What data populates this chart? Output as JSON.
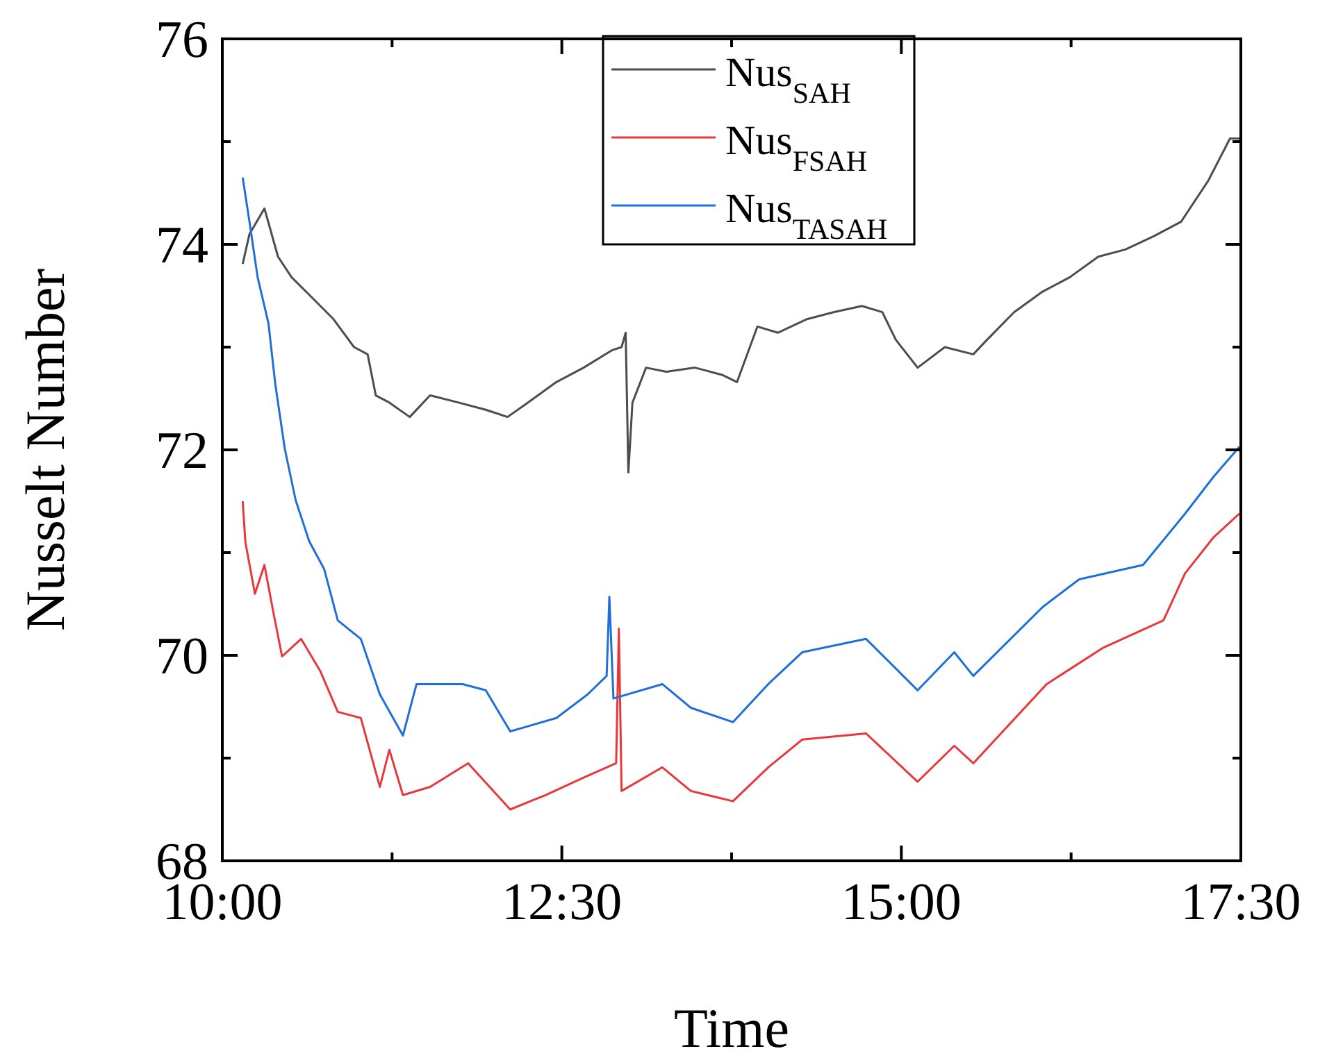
{
  "chart_data": {
    "type": "line",
    "xlabel": "Time",
    "ylabel": "Nusselt Number",
    "xlim": [
      10,
      17.5
    ],
    "ylim": [
      68,
      76
    ],
    "xticks": [
      {
        "value": 10,
        "label": "10:00"
      },
      {
        "value": 11.25,
        "label": null
      },
      {
        "value": 12.5,
        "label": "12:30"
      },
      {
        "value": 13.75,
        "label": null
      },
      {
        "value": 15,
        "label": "15:00"
      },
      {
        "value": 16.25,
        "label": null
      },
      {
        "value": 17.5,
        "label": "17:30"
      }
    ],
    "yticks": [
      68,
      {
        "value": 69,
        "label": null
      },
      70,
      {
        "value": 71,
        "label": null
      },
      72,
      {
        "value": 73,
        "label": null
      },
      74,
      {
        "value": 75,
        "label": null
      },
      76
    ],
    "legend": "top",
    "grid": false,
    "marker": "none",
    "line_style": "solid",
    "series": [
      {
        "name": "Nus$_{SAH}$",
        "color": "#4d4d4d",
        "x": [
          10.15,
          10.2,
          10.31,
          10.41,
          10.51,
          10.67,
          10.82,
          10.97,
          11.07,
          11.13,
          11.23,
          11.38,
          11.53,
          11.74,
          11.94,
          12.1,
          12.25,
          12.46,
          12.66,
          12.87,
          12.94,
          12.97,
          12.99,
          13.02,
          13.12,
          13.27,
          13.48,
          13.68,
          13.79,
          13.94,
          14.09,
          14.3,
          14.5,
          14.71,
          14.86,
          14.96,
          15.12,
          15.32,
          15.53,
          15.63,
          15.83,
          16.04,
          16.24,
          16.45,
          16.65,
          16.86,
          17.06,
          17.26,
          17.42,
          17.5
        ],
        "values": [
          73.81,
          74.1,
          74.35,
          73.88,
          73.68,
          73.47,
          73.27,
          73.0,
          72.93,
          72.53,
          72.46,
          72.32,
          72.53,
          72.46,
          72.39,
          72.32,
          72.46,
          72.66,
          72.8,
          72.97,
          73.0,
          73.14,
          71.78,
          72.46,
          72.8,
          72.76,
          72.8,
          72.73,
          72.66,
          73.2,
          73.14,
          73.27,
          73.34,
          73.4,
          73.34,
          73.07,
          72.8,
          73.0,
          72.93,
          73.07,
          73.34,
          73.54,
          73.68,
          73.88,
          73.95,
          74.08,
          74.22,
          74.62,
          75.03,
          75.03
        ]
      },
      {
        "name": "Nus$_{FSAH}$",
        "color": "#e8383d",
        "x": [
          10.15,
          10.17,
          10.24,
          10.31,
          10.38,
          10.44,
          10.58,
          10.72,
          10.85,
          11.02,
          11.16,
          11.23,
          11.33,
          11.53,
          11.81,
          12.12,
          12.38,
          12.66,
          12.9,
          12.92,
          12.94,
          13.24,
          13.45,
          13.76,
          14.02,
          14.27,
          14.74,
          15.12,
          15.39,
          15.53,
          16.07,
          16.48,
          16.93,
          17.09,
          17.3,
          17.49
        ],
        "values": [
          71.5,
          71.1,
          70.6,
          70.88,
          70.39,
          69.99,
          70.16,
          69.85,
          69.45,
          69.39,
          68.72,
          69.08,
          68.64,
          68.72,
          68.95,
          68.5,
          68.64,
          68.81,
          68.95,
          70.26,
          68.68,
          68.91,
          68.68,
          68.58,
          68.91,
          69.18,
          69.24,
          68.77,
          69.12,
          68.95,
          69.72,
          70.07,
          70.34,
          70.8,
          71.15,
          71.38
        ]
      },
      {
        "name": "Nus$_{TASAH}$",
        "color": "#1f6fdb",
        "x": [
          10.15,
          10.2,
          10.26,
          10.34,
          10.39,
          10.46,
          10.54,
          10.64,
          10.75,
          10.85,
          11.02,
          11.16,
          11.33,
          11.43,
          11.77,
          11.94,
          12.12,
          12.46,
          12.69,
          12.83,
          12.85,
          12.88,
          13.24,
          13.45,
          13.76,
          14.02,
          14.27,
          14.74,
          15.12,
          15.39,
          15.53,
          16.04,
          16.31,
          16.78,
          17.09,
          17.3,
          17.49
        ],
        "values": [
          74.65,
          74.22,
          73.68,
          73.23,
          72.64,
          72.01,
          71.51,
          71.11,
          70.84,
          70.34,
          70.16,
          69.62,
          69.22,
          69.72,
          69.72,
          69.66,
          69.26,
          69.39,
          69.62,
          69.8,
          70.57,
          69.58,
          69.72,
          69.49,
          69.35,
          69.72,
          70.03,
          70.16,
          69.66,
          70.03,
          69.8,
          70.47,
          70.74,
          70.88,
          71.38,
          71.74,
          72.03
        ]
      }
    ]
  }
}
